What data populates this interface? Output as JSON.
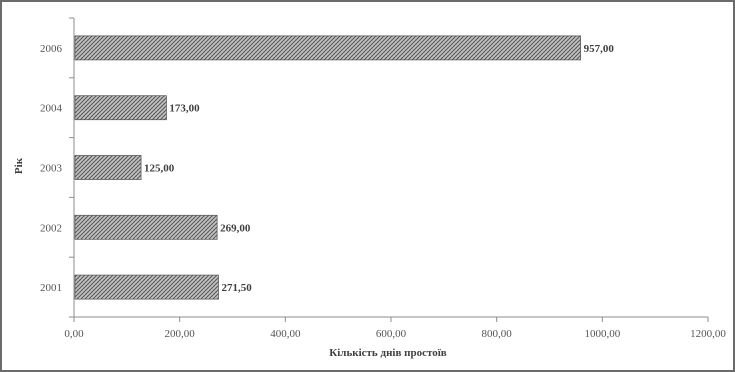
{
  "chart_data": {
    "type": "bar",
    "orientation": "horizontal",
    "categories": [
      "2001",
      "2002",
      "2003",
      "2004",
      "2006"
    ],
    "values": [
      271.5,
      269.0,
      125.0,
      173.0,
      957.0
    ],
    "data_labels": [
      "271,50",
      "269,00",
      "125,00",
      "173,00",
      "957,00"
    ],
    "xlabel": "Кількість днів простоїв",
    "ylabel": "Рік",
    "xlim": [
      0,
      1200
    ],
    "x_ticks": [
      0,
      200,
      400,
      600,
      800,
      1000,
      1200
    ],
    "x_tick_labels": [
      "0,00",
      "200,00",
      "400,00",
      "600,00",
      "800,00",
      "1000,00",
      "1200,00"
    ],
    "grid": false,
    "legend": "none",
    "bar_pattern": "crosshatch",
    "colors": {
      "bar_fill": "#bdbdbd",
      "bar_hatch": "#4a4a4a",
      "axis": "#8c8c8c",
      "frame": "#6b6b6b"
    }
  }
}
